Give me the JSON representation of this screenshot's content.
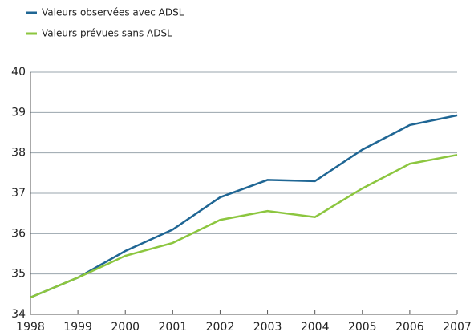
{
  "chart_data": {
    "type": "line",
    "x": [
      1998,
      1999,
      2000,
      2001,
      2002,
      2003,
      2004,
      2005,
      2006,
      2007
    ],
    "series": [
      {
        "name": "Valeurs observées avec ADSL",
        "color": "#1f6694",
        "values": [
          34.42,
          34.91,
          35.57,
          36.1,
          36.9,
          37.33,
          37.3,
          38.08,
          38.69,
          38.93
        ]
      },
      {
        "name": "Valeurs prévues sans ADSL",
        "color": "#8cc63f",
        "values": [
          34.42,
          34.91,
          35.45,
          35.77,
          36.34,
          36.56,
          36.41,
          37.12,
          37.73,
          37.95
        ]
      }
    ],
    "xlim": [
      1998,
      2007
    ],
    "xticks": [
      1998,
      1999,
      2000,
      2001,
      2002,
      2003,
      2004,
      2005,
      2006,
      2007
    ],
    "ylim": [
      34,
      40
    ],
    "yticks": [
      34,
      35,
      36,
      37,
      38,
      39,
      40
    ],
    "grid": true,
    "legend": "top-left"
  }
}
